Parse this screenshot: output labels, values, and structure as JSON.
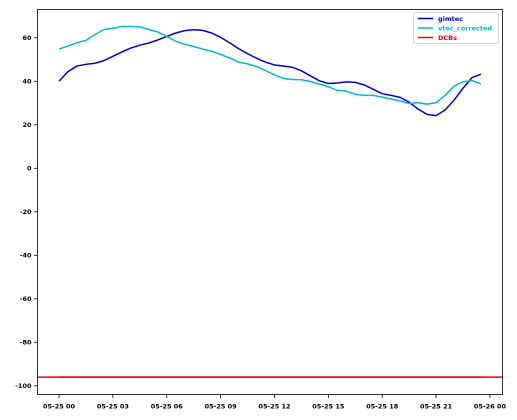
{
  "chart_data": {
    "type": "line",
    "title": "",
    "xlabel": "",
    "ylabel": "",
    "x_tick_labels": [
      "05-25 00",
      "05-25 03",
      "05-25 06",
      "05-25 09",
      "05-25 12",
      "05-25 15",
      "05-25 18",
      "05-25 21",
      "05-26 00"
    ],
    "x_tick_hours": [
      0,
      3,
      6,
      9,
      12,
      15,
      18,
      21,
      24
    ],
    "xlim": [
      -1.2,
      24.7
    ],
    "ylim": [
      -104,
      73
    ],
    "y_ticks": [
      -100,
      -80,
      -60,
      -40,
      -20,
      0,
      20,
      40,
      60
    ],
    "grid": false,
    "legend": "top-right",
    "x_hours": [
      0,
      0.5,
      1,
      1.5,
      2,
      2.5,
      3,
      3.5,
      4,
      4.5,
      5,
      5.5,
      6,
      6.5,
      7,
      7.5,
      8,
      8.5,
      9,
      9.5,
      10,
      10.5,
      11,
      11.5,
      12,
      12.5,
      13,
      13.5,
      14,
      14.5,
      15,
      15.5,
      16,
      16.5,
      17,
      17.5,
      18,
      18.5,
      19,
      19.5,
      20,
      20.5,
      21,
      21.5,
      22,
      22.5,
      23,
      23.5
    ],
    "series": [
      {
        "name": "gimtec",
        "color": "#0000dd",
        "values": [
          40,
          44.5,
          47,
          47.8,
          48.3,
          49.5,
          51.5,
          53.5,
          55.3,
          56.6,
          57.6,
          59,
          60.6,
          62.2,
          63.3,
          63.7,
          63.4,
          62.2,
          60.2,
          57.7,
          55,
          52.7,
          50.6,
          48.8,
          47.5,
          47,
          46.4,
          44.8,
          42.5,
          40.2,
          39,
          39.2,
          39.7,
          39.5,
          38.3,
          36.3,
          34.3,
          33.5,
          32.6,
          30.4,
          27.2,
          24.8,
          24.2,
          26.8,
          31.3,
          36.8,
          41.7,
          43.2
        ]
      },
      {
        "name": "vtec_corrected",
        "color": "#00bbcc",
        "values": [
          54.8,
          56.2,
          57.8,
          58.8,
          61.5,
          63.8,
          64.3,
          65.2,
          65.2,
          65,
          63.8,
          62.7,
          60.6,
          58.4,
          57,
          56,
          54.8,
          53.8,
          52.3,
          50.8,
          48.8,
          48,
          46.8,
          44.9,
          42.9,
          41.3,
          40.8,
          40.7,
          39.9,
          38.7,
          37.5,
          35.8,
          35.5,
          34,
          33.5,
          33.5,
          32.7,
          31.8,
          31,
          29.8,
          30.2,
          29.5,
          30.2,
          33.5,
          37.8,
          39.8,
          40.3,
          38.7
        ]
      },
      {
        "name": "DCBs",
        "color": "#ee0000",
        "values": [
          -96,
          -96,
          -96,
          -96,
          -96,
          -96,
          -96,
          -96,
          -96,
          -96,
          -96,
          -96,
          -96,
          -96,
          -96,
          -96,
          -96,
          -96,
          -96,
          -96,
          -96,
          -96,
          -96,
          -96,
          -96,
          -96,
          -96,
          -96,
          -96,
          -96,
          -96,
          -96,
          -96,
          -96,
          -96,
          -96,
          -96,
          -96,
          -96,
          -96,
          -96,
          -96,
          -96,
          -96,
          -96,
          -96,
          -96,
          -96
        ]
      }
    ]
  }
}
